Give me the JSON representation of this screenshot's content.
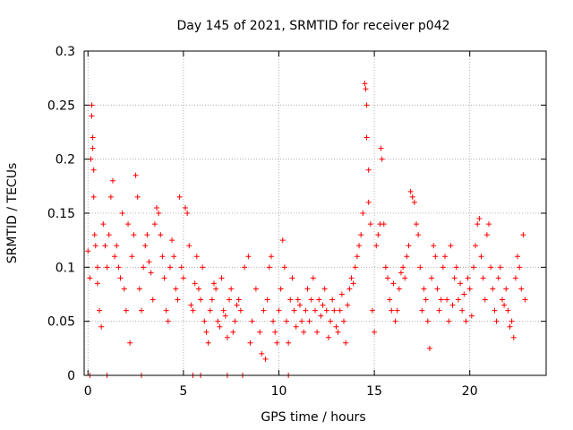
{
  "chart_data": {
    "type": "scatter",
    "title": "Day 145 of 2021, SRMTID for receiver p042",
    "xlabel": "GPS time / hours",
    "ylabel": "SRMTID / TECUs",
    "xlim": [
      -0.2,
      24
    ],
    "ylim": [
      0,
      0.3
    ],
    "x_ticks": [
      0,
      5,
      10,
      15,
      20
    ],
    "y_ticks": [
      0,
      0.05,
      0.1,
      0.15,
      0.2,
      0.25,
      0.3
    ],
    "x_tick_labels": [
      "0",
      "5",
      "10",
      "15",
      "20"
    ],
    "y_tick_labels": [
      "0",
      "0.05",
      "0.1",
      "0.15",
      "0.2",
      "0.25",
      "0.3"
    ],
    "grid": true,
    "marker": "+",
    "color": "#ff0000",
    "series": [
      {
        "name": "SRMTID",
        "points": [
          [
            0.0,
            0.115
          ],
          [
            0.1,
            0.09
          ],
          [
            0.15,
            0.2
          ],
          [
            0.2,
            0.25
          ],
          [
            0.2,
            0.24
          ],
          [
            0.25,
            0.22
          ],
          [
            0.25,
            0.21
          ],
          [
            0.3,
            0.19
          ],
          [
            0.3,
            0.165
          ],
          [
            0.35,
            0.13
          ],
          [
            0.4,
            0.12
          ],
          [
            0.5,
            0.1
          ],
          [
            0.5,
            0.085
          ],
          [
            0.6,
            0.06
          ],
          [
            0.7,
            0.045
          ],
          [
            0.8,
            0.14
          ],
          [
            0.9,
            0.12
          ],
          [
            1.0,
            0.1
          ],
          [
            1.1,
            0.13
          ],
          [
            1.2,
            0.165
          ],
          [
            1.3,
            0.18
          ],
          [
            1.4,
            0.11
          ],
          [
            1.5,
            0.12
          ],
          [
            1.6,
            0.1
          ],
          [
            1.7,
            0.09
          ],
          [
            1.8,
            0.15
          ],
          [
            1.9,
            0.08
          ],
          [
            2.0,
            0.06
          ],
          [
            2.1,
            0.14
          ],
          [
            2.2,
            0.03
          ],
          [
            2.3,
            0.11
          ],
          [
            2.4,
            0.13
          ],
          [
            2.5,
            0.185
          ],
          [
            2.6,
            0.165
          ],
          [
            2.7,
            0.08
          ],
          [
            2.8,
            0.06
          ],
          [
            2.9,
            0.1
          ],
          [
            3.0,
            0.12
          ],
          [
            3.1,
            0.13
          ],
          [
            3.2,
            0.105
          ],
          [
            3.3,
            0.095
          ],
          [
            3.4,
            0.07
          ],
          [
            3.5,
            0.14
          ],
          [
            3.6,
            0.155
          ],
          [
            3.7,
            0.15
          ],
          [
            3.8,
            0.13
          ],
          [
            3.9,
            0.11
          ],
          [
            4.0,
            0.09
          ],
          [
            4.1,
            0.06
          ],
          [
            4.2,
            0.05
          ],
          [
            4.3,
            0.1
          ],
          [
            4.4,
            0.125
          ],
          [
            4.5,
            0.11
          ],
          [
            4.6,
            0.08
          ],
          [
            4.7,
            0.07
          ],
          [
            4.8,
            0.165
          ],
          [
            4.9,
            0.1
          ],
          [
            5.0,
            0.09
          ],
          [
            5.1,
            0.155
          ],
          [
            5.2,
            0.15
          ],
          [
            5.3,
            0.12
          ],
          [
            5.4,
            0.065
          ],
          [
            5.5,
            0.06
          ],
          [
            5.6,
            0.085
          ],
          [
            5.7,
            0.11
          ],
          [
            5.8,
            0.08
          ],
          [
            5.9,
            0.07
          ],
          [
            6.0,
            0.1
          ],
          [
            6.1,
            0.05
          ],
          [
            6.2,
            0.04
          ],
          [
            6.3,
            0.03
          ],
          [
            6.4,
            0.06
          ],
          [
            6.5,
            0.07
          ],
          [
            6.6,
            0.085
          ],
          [
            6.7,
            0.08
          ],
          [
            6.8,
            0.05
          ],
          [
            6.9,
            0.045
          ],
          [
            7.0,
            0.09
          ],
          [
            7.1,
            0.06
          ],
          [
            7.2,
            0.055
          ],
          [
            7.3,
            0.035
          ],
          [
            7.4,
            0.07
          ],
          [
            7.5,
            0.08
          ],
          [
            7.6,
            0.04
          ],
          [
            7.7,
            0.05
          ],
          [
            7.8,
            0.065
          ],
          [
            7.9,
            0.07
          ],
          [
            8.0,
            0.06
          ],
          [
            8.2,
            0.1
          ],
          [
            8.4,
            0.11
          ],
          [
            8.5,
            0.03
          ],
          [
            8.6,
            0.05
          ],
          [
            8.8,
            0.08
          ],
          [
            9.0,
            0.04
          ],
          [
            9.1,
            0.02
          ],
          [
            9.2,
            0.06
          ],
          [
            9.3,
            0.015
          ],
          [
            9.4,
            0.07
          ],
          [
            9.5,
            0.1
          ],
          [
            9.6,
            0.11
          ],
          [
            9.7,
            0.05
          ],
          [
            9.8,
            0.04
          ],
          [
            9.9,
            0.03
          ],
          [
            10.0,
            0.06
          ],
          [
            10.1,
            0.08
          ],
          [
            10.2,
            0.125
          ],
          [
            10.3,
            0.1
          ],
          [
            10.4,
            0.05
          ],
          [
            10.5,
            0.03
          ],
          [
            10.6,
            0.07
          ],
          [
            10.7,
            0.09
          ],
          [
            10.8,
            0.06
          ],
          [
            10.9,
            0.045
          ],
          [
            11.0,
            0.07
          ],
          [
            11.1,
            0.065
          ],
          [
            11.2,
            0.05
          ],
          [
            11.3,
            0.04
          ],
          [
            11.4,
            0.06
          ],
          [
            11.5,
            0.08
          ],
          [
            11.6,
            0.05
          ],
          [
            11.7,
            0.07
          ],
          [
            11.8,
            0.09
          ],
          [
            11.9,
            0.06
          ],
          [
            12.0,
            0.04
          ],
          [
            12.1,
            0.07
          ],
          [
            12.2,
            0.055
          ],
          [
            12.3,
            0.065
          ],
          [
            12.4,
            0.08
          ],
          [
            12.5,
            0.06
          ],
          [
            12.6,
            0.035
          ],
          [
            12.7,
            0.05
          ],
          [
            12.8,
            0.07
          ],
          [
            12.9,
            0.06
          ],
          [
            13.0,
            0.045
          ],
          [
            13.1,
            0.04
          ],
          [
            13.2,
            0.06
          ],
          [
            13.3,
            0.075
          ],
          [
            13.4,
            0.05
          ],
          [
            13.5,
            0.03
          ],
          [
            13.6,
            0.065
          ],
          [
            13.7,
            0.08
          ],
          [
            13.8,
            0.09
          ],
          [
            13.9,
            0.085
          ],
          [
            14.0,
            0.1
          ],
          [
            14.1,
            0.11
          ],
          [
            14.2,
            0.12
          ],
          [
            14.3,
            0.13
          ],
          [
            14.4,
            0.15
          ],
          [
            14.5,
            0.27
          ],
          [
            14.55,
            0.265
          ],
          [
            14.6,
            0.25
          ],
          [
            14.6,
            0.22
          ],
          [
            14.7,
            0.19
          ],
          [
            14.7,
            0.16
          ],
          [
            14.8,
            0.14
          ],
          [
            14.9,
            0.06
          ],
          [
            15.0,
            0.04
          ],
          [
            15.1,
            0.12
          ],
          [
            15.2,
            0.13
          ],
          [
            15.3,
            0.14
          ],
          [
            15.35,
            0.21
          ],
          [
            15.4,
            0.2
          ],
          [
            15.5,
            0.14
          ],
          [
            15.6,
            0.1
          ],
          [
            15.7,
            0.09
          ],
          [
            15.8,
            0.07
          ],
          [
            15.9,
            0.06
          ],
          [
            16.0,
            0.085
          ],
          [
            16.1,
            0.05
          ],
          [
            16.2,
            0.06
          ],
          [
            16.3,
            0.08
          ],
          [
            16.4,
            0.095
          ],
          [
            16.5,
            0.1
          ],
          [
            16.6,
            0.09
          ],
          [
            16.7,
            0.11
          ],
          [
            16.8,
            0.12
          ],
          [
            16.9,
            0.17
          ],
          [
            17.0,
            0.165
          ],
          [
            17.1,
            0.16
          ],
          [
            17.2,
            0.14
          ],
          [
            17.3,
            0.13
          ],
          [
            17.4,
            0.1
          ],
          [
            17.5,
            0.06
          ],
          [
            17.6,
            0.08
          ],
          [
            17.7,
            0.07
          ],
          [
            17.8,
            0.05
          ],
          [
            17.9,
            0.025
          ],
          [
            18.0,
            0.09
          ],
          [
            18.1,
            0.12
          ],
          [
            18.2,
            0.11
          ],
          [
            18.3,
            0.08
          ],
          [
            18.4,
            0.06
          ],
          [
            18.5,
            0.07
          ],
          [
            18.6,
            0.1
          ],
          [
            18.7,
            0.11
          ],
          [
            18.8,
            0.07
          ],
          [
            18.9,
            0.05
          ],
          [
            19.0,
            0.12
          ],
          [
            19.1,
            0.065
          ],
          [
            19.2,
            0.09
          ],
          [
            19.3,
            0.1
          ],
          [
            19.4,
            0.07
          ],
          [
            19.5,
            0.085
          ],
          [
            19.6,
            0.06
          ],
          [
            19.7,
            0.075
          ],
          [
            19.8,
            0.05
          ],
          [
            19.9,
            0.09
          ],
          [
            20.0,
            0.08
          ],
          [
            20.1,
            0.055
          ],
          [
            20.2,
            0.1
          ],
          [
            20.3,
            0.12
          ],
          [
            20.4,
            0.14
          ],
          [
            20.5,
            0.145
          ],
          [
            20.6,
            0.11
          ],
          [
            20.7,
            0.09
          ],
          [
            20.8,
            0.07
          ],
          [
            20.9,
            0.13
          ],
          [
            21.0,
            0.14
          ],
          [
            21.1,
            0.1
          ],
          [
            21.2,
            0.08
          ],
          [
            21.3,
            0.06
          ],
          [
            21.4,
            0.05
          ],
          [
            21.5,
            0.09
          ],
          [
            21.6,
            0.1
          ],
          [
            21.7,
            0.07
          ],
          [
            21.8,
            0.065
          ],
          [
            21.9,
            0.08
          ],
          [
            22.0,
            0.06
          ],
          [
            22.1,
            0.045
          ],
          [
            22.2,
            0.05
          ],
          [
            22.3,
            0.035
          ],
          [
            22.4,
            0.09
          ],
          [
            22.5,
            0.11
          ],
          [
            22.6,
            0.1
          ],
          [
            22.7,
            0.08
          ],
          [
            22.8,
            0.13
          ],
          [
            22.9,
            0.07
          ],
          [
            0.1,
            0.0
          ],
          [
            1.0,
            0.0
          ],
          [
            2.8,
            0.0
          ],
          [
            5.5,
            0.0
          ],
          [
            5.9,
            0.0
          ],
          [
            7.3,
            0.0
          ],
          [
            8.1,
            0.0
          ],
          [
            10.5,
            0.0
          ]
        ]
      }
    ]
  }
}
